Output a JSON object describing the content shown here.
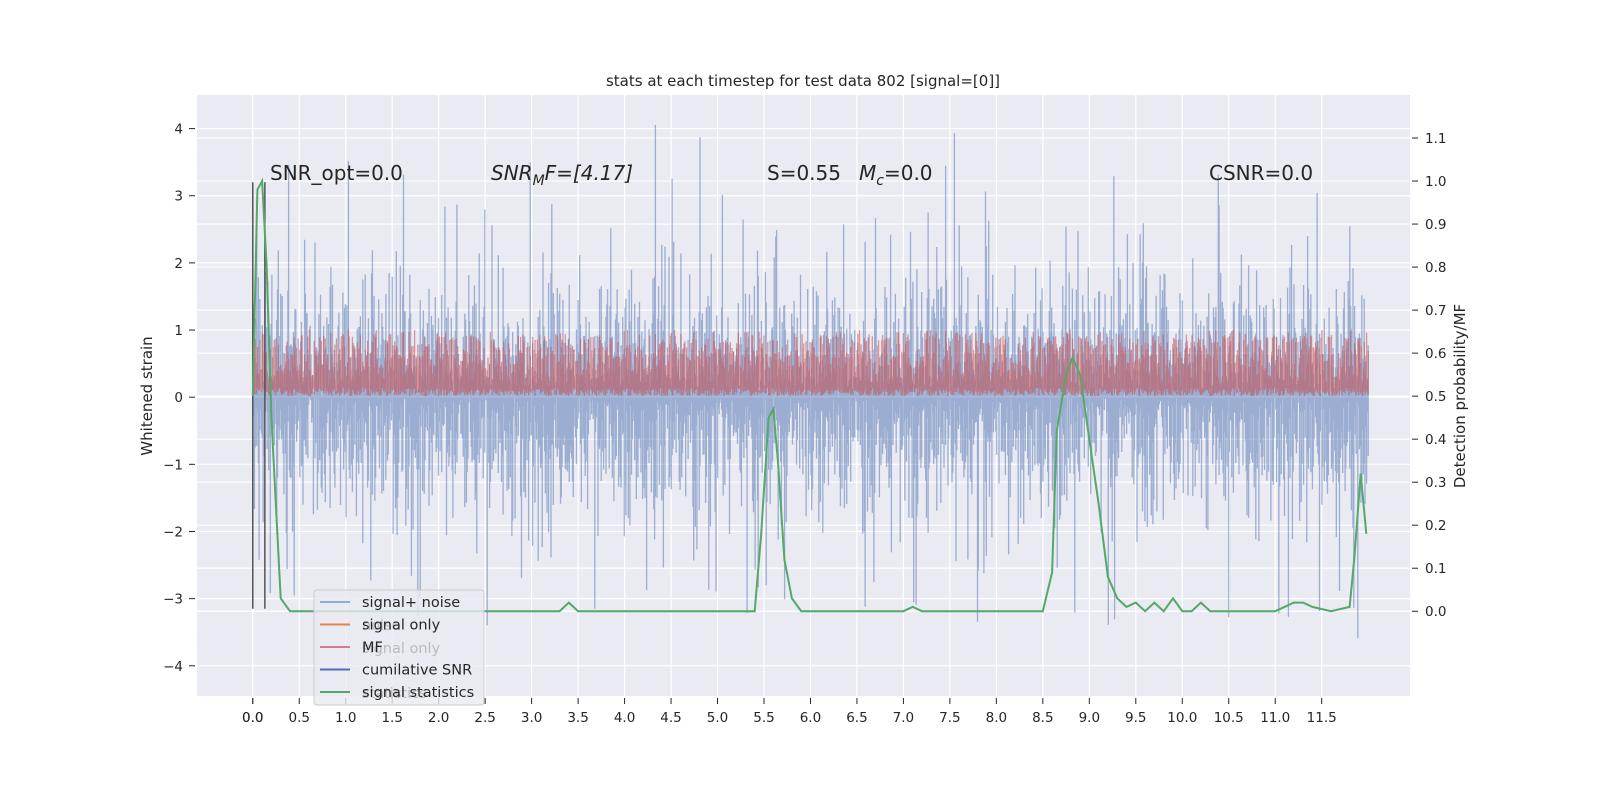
{
  "chart_data": {
    "type": "line",
    "title": "stats at each timestep for test data 802 [signal=[0]]",
    "ylabel": "Whitened strain",
    "y2label": "Detection probability/MF",
    "xlim": [
      -0.6,
      12.45
    ],
    "ylim": [
      -4.45,
      4.5
    ],
    "y2lim": [
      -0.197,
      1.2
    ],
    "xticks": [
      "0.0",
      "0.0",
      "0.5",
      "1.0",
      "1.5",
      "2.0",
      "2.5",
      "3.0",
      "3.5",
      "4.0",
      "4.5",
      "5.0",
      "5.5",
      "6.0",
      "6.5",
      "7.0",
      "7.5",
      "8.0",
      "8.5",
      "9.0",
      "9.5",
      "10.0",
      "10.5",
      "11.0",
      "11.5"
    ],
    "xtick_values": [
      0.0,
      0.0,
      0.5,
      1.0,
      1.5,
      2.0,
      2.5,
      3.0,
      3.5,
      4.0,
      4.5,
      5.0,
      5.5,
      6.0,
      6.5,
      7.0,
      7.5,
      8.0,
      8.5,
      9.0,
      9.5,
      10.0,
      10.5,
      11.0,
      11.5
    ],
    "yticks": [
      4,
      3,
      2,
      1,
      0,
      -1,
      -2,
      -3,
      -4
    ],
    "ytick_labels": [
      "4",
      "3",
      "2",
      "1",
      "0",
      "−1",
      "−2",
      "−3",
      "−4"
    ],
    "y2ticks": [
      1.1,
      1.0,
      0.9,
      0.8,
      0.7,
      0.6,
      0.5,
      0.4,
      0.3,
      0.2,
      0.1,
      0.0
    ],
    "y2tick_labels": [
      "1.1",
      "1.0",
      "0.9",
      "0.8",
      "0.7",
      "0.6",
      "0.5",
      "0.4",
      "0.3",
      "0.2",
      "0.1",
      "0.0"
    ],
    "grid": true,
    "legend_position": "lower-left",
    "annotations": {
      "snr_opt": "SNR_opt=0.0",
      "snr_mf_main": "SNR",
      "snr_mf_sub": "M",
      "snr_mf_rest": "F=[4.17]",
      "s_label": "S=0.55",
      "mc_main": "M",
      "mc_sub": "c",
      "mc_rest": "=0.0",
      "csnr": "CSNR=0.0"
    },
    "vertical_lines": [
      {
        "x": 0.0,
        "y_from": -3.15,
        "y_to": 3.2
      },
      {
        "x": 0.13,
        "y_from": -3.15,
        "y_to": 3.2
      }
    ],
    "series": [
      {
        "name": "signal+ noise",
        "color": "#4c72b0",
        "alpha": 0.5,
        "axis": "left",
        "x_range": [
          0.0,
          12.0
        ],
        "samples": 1400,
        "sigma": 0.95,
        "spike_max": 4.1
      },
      {
        "name": "signal only",
        "color": "#dd8452",
        "axis": "left",
        "values": []
      },
      {
        "name": "MF",
        "color": "#c44e52",
        "alpha": 0.55,
        "axis": "right",
        "x_range": [
          0.0,
          12.0
        ],
        "samples": 1400,
        "y2_range": [
          0.5,
          0.64
        ]
      },
      {
        "name": "cumilative SNR",
        "color": "#4c72b0",
        "axis": "right",
        "values": []
      },
      {
        "name": "signal statistics",
        "color": "#55a868",
        "axis": "right",
        "x": [
          0.0,
          0.05,
          0.1,
          0.15,
          0.2,
          0.3,
          0.4,
          0.5,
          1.0,
          1.5,
          2.0,
          2.5,
          3.0,
          3.3,
          3.4,
          3.5,
          4.0,
          4.5,
          5.0,
          5.4,
          5.47,
          5.55,
          5.6,
          5.65,
          5.72,
          5.8,
          5.9,
          6.0,
          6.5,
          7.0,
          7.1,
          7.2,
          7.5,
          7.7,
          8.0,
          8.5,
          8.6,
          8.65,
          8.75,
          8.82,
          8.9,
          9.0,
          9.1,
          9.2,
          9.3,
          9.4,
          9.5,
          9.6,
          9.7,
          9.8,
          9.9,
          10.0,
          10.1,
          10.2,
          10.3,
          10.4,
          10.5,
          10.7,
          11.0,
          11.2,
          11.3,
          11.4,
          11.6,
          11.8,
          11.85,
          11.92,
          11.98
        ],
        "y": [
          0.5,
          0.98,
          1.0,
          0.8,
          0.45,
          0.03,
          0.0,
          0.0,
          0.0,
          0.0,
          0.0,
          0.0,
          0.0,
          0.0,
          0.02,
          0.0,
          0.0,
          0.0,
          0.0,
          0.0,
          0.18,
          0.45,
          0.47,
          0.35,
          0.12,
          0.03,
          0.0,
          0.0,
          0.0,
          0.0,
          0.01,
          0.0,
          0.0,
          0.0,
          0.0,
          0.0,
          0.09,
          0.42,
          0.55,
          0.59,
          0.55,
          0.4,
          0.25,
          0.08,
          0.03,
          0.01,
          0.02,
          0.0,
          0.02,
          0.0,
          0.03,
          0.0,
          0.0,
          0.02,
          0.0,
          0.0,
          0.0,
          0.0,
          0.0,
          0.02,
          0.02,
          0.01,
          0.0,
          0.01,
          0.12,
          0.32,
          0.18
        ]
      }
    ]
  }
}
